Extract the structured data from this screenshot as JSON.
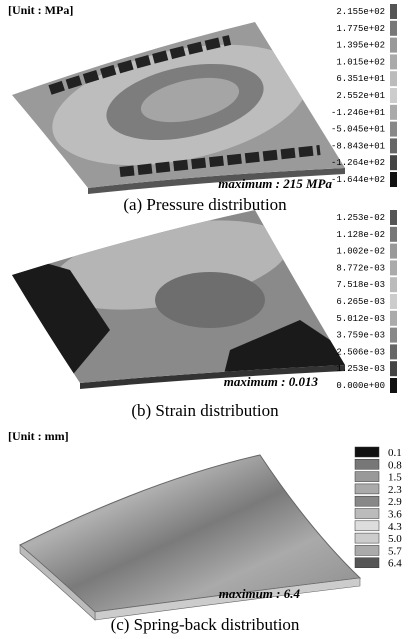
{
  "panels": [
    {
      "unit": "[Unit : MPa]",
      "maximum": "maximum : 215 MPa",
      "caption": "(a) Pressure distribution",
      "legend": [
        "2.155e+02",
        "1.775e+02",
        "1.395e+02",
        "1.015e+02",
        "6.351e+01",
        "2.552e+01",
        "-1.246e+01",
        "-5.045e+01",
        "-8.843e+01",
        "-1.264e+02",
        "-1.644e+02"
      ]
    },
    {
      "maximum": "maximum : 0.013",
      "caption": "(b) Strain distribution",
      "legend": [
        "1.253e-02",
        "1.128e-02",
        "1.002e-02",
        "8.772e-03",
        "7.518e-03",
        "6.265e-03",
        "5.012e-03",
        "3.759e-03",
        "2.506e-03",
        "1.253e-03",
        "0.000e+00"
      ]
    },
    {
      "unit": "[Unit : mm]",
      "maximum": "maximum : 6.4",
      "caption": "(c) Spring-back distribution",
      "legend": [
        "0.1",
        "0.8",
        "1.5",
        "2.3",
        "2.9",
        "3.6",
        "4.3",
        "5.0",
        "5.7",
        "6.4"
      ]
    }
  ]
}
